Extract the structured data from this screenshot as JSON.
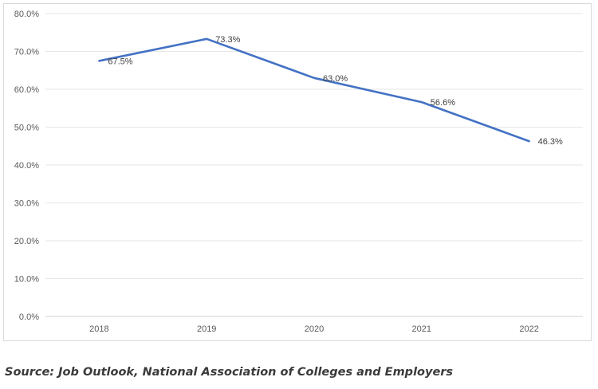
{
  "chart_data": {
    "type": "line",
    "categories": [
      "2018",
      "2019",
      "2020",
      "2021",
      "2022"
    ],
    "series": [
      {
        "values": [
          67.5,
          73.3,
          63.0,
          56.6,
          46.3
        ],
        "labels": [
          "67.5%",
          "73.3%",
          "63.0%",
          "56.6%",
          "46.3%"
        ],
        "color": "#4472c4"
      }
    ],
    "ylim": [
      0,
      80
    ],
    "yticks": [
      "0.0%",
      "10.0%",
      "20.0%",
      "30.0%",
      "40.0%",
      "50.0%",
      "60.0%",
      "70.0%",
      "80.0%"
    ],
    "grid": true,
    "legend": "none"
  },
  "source_note": "Source: Job Outlook, National Association of Colleges and Employers"
}
